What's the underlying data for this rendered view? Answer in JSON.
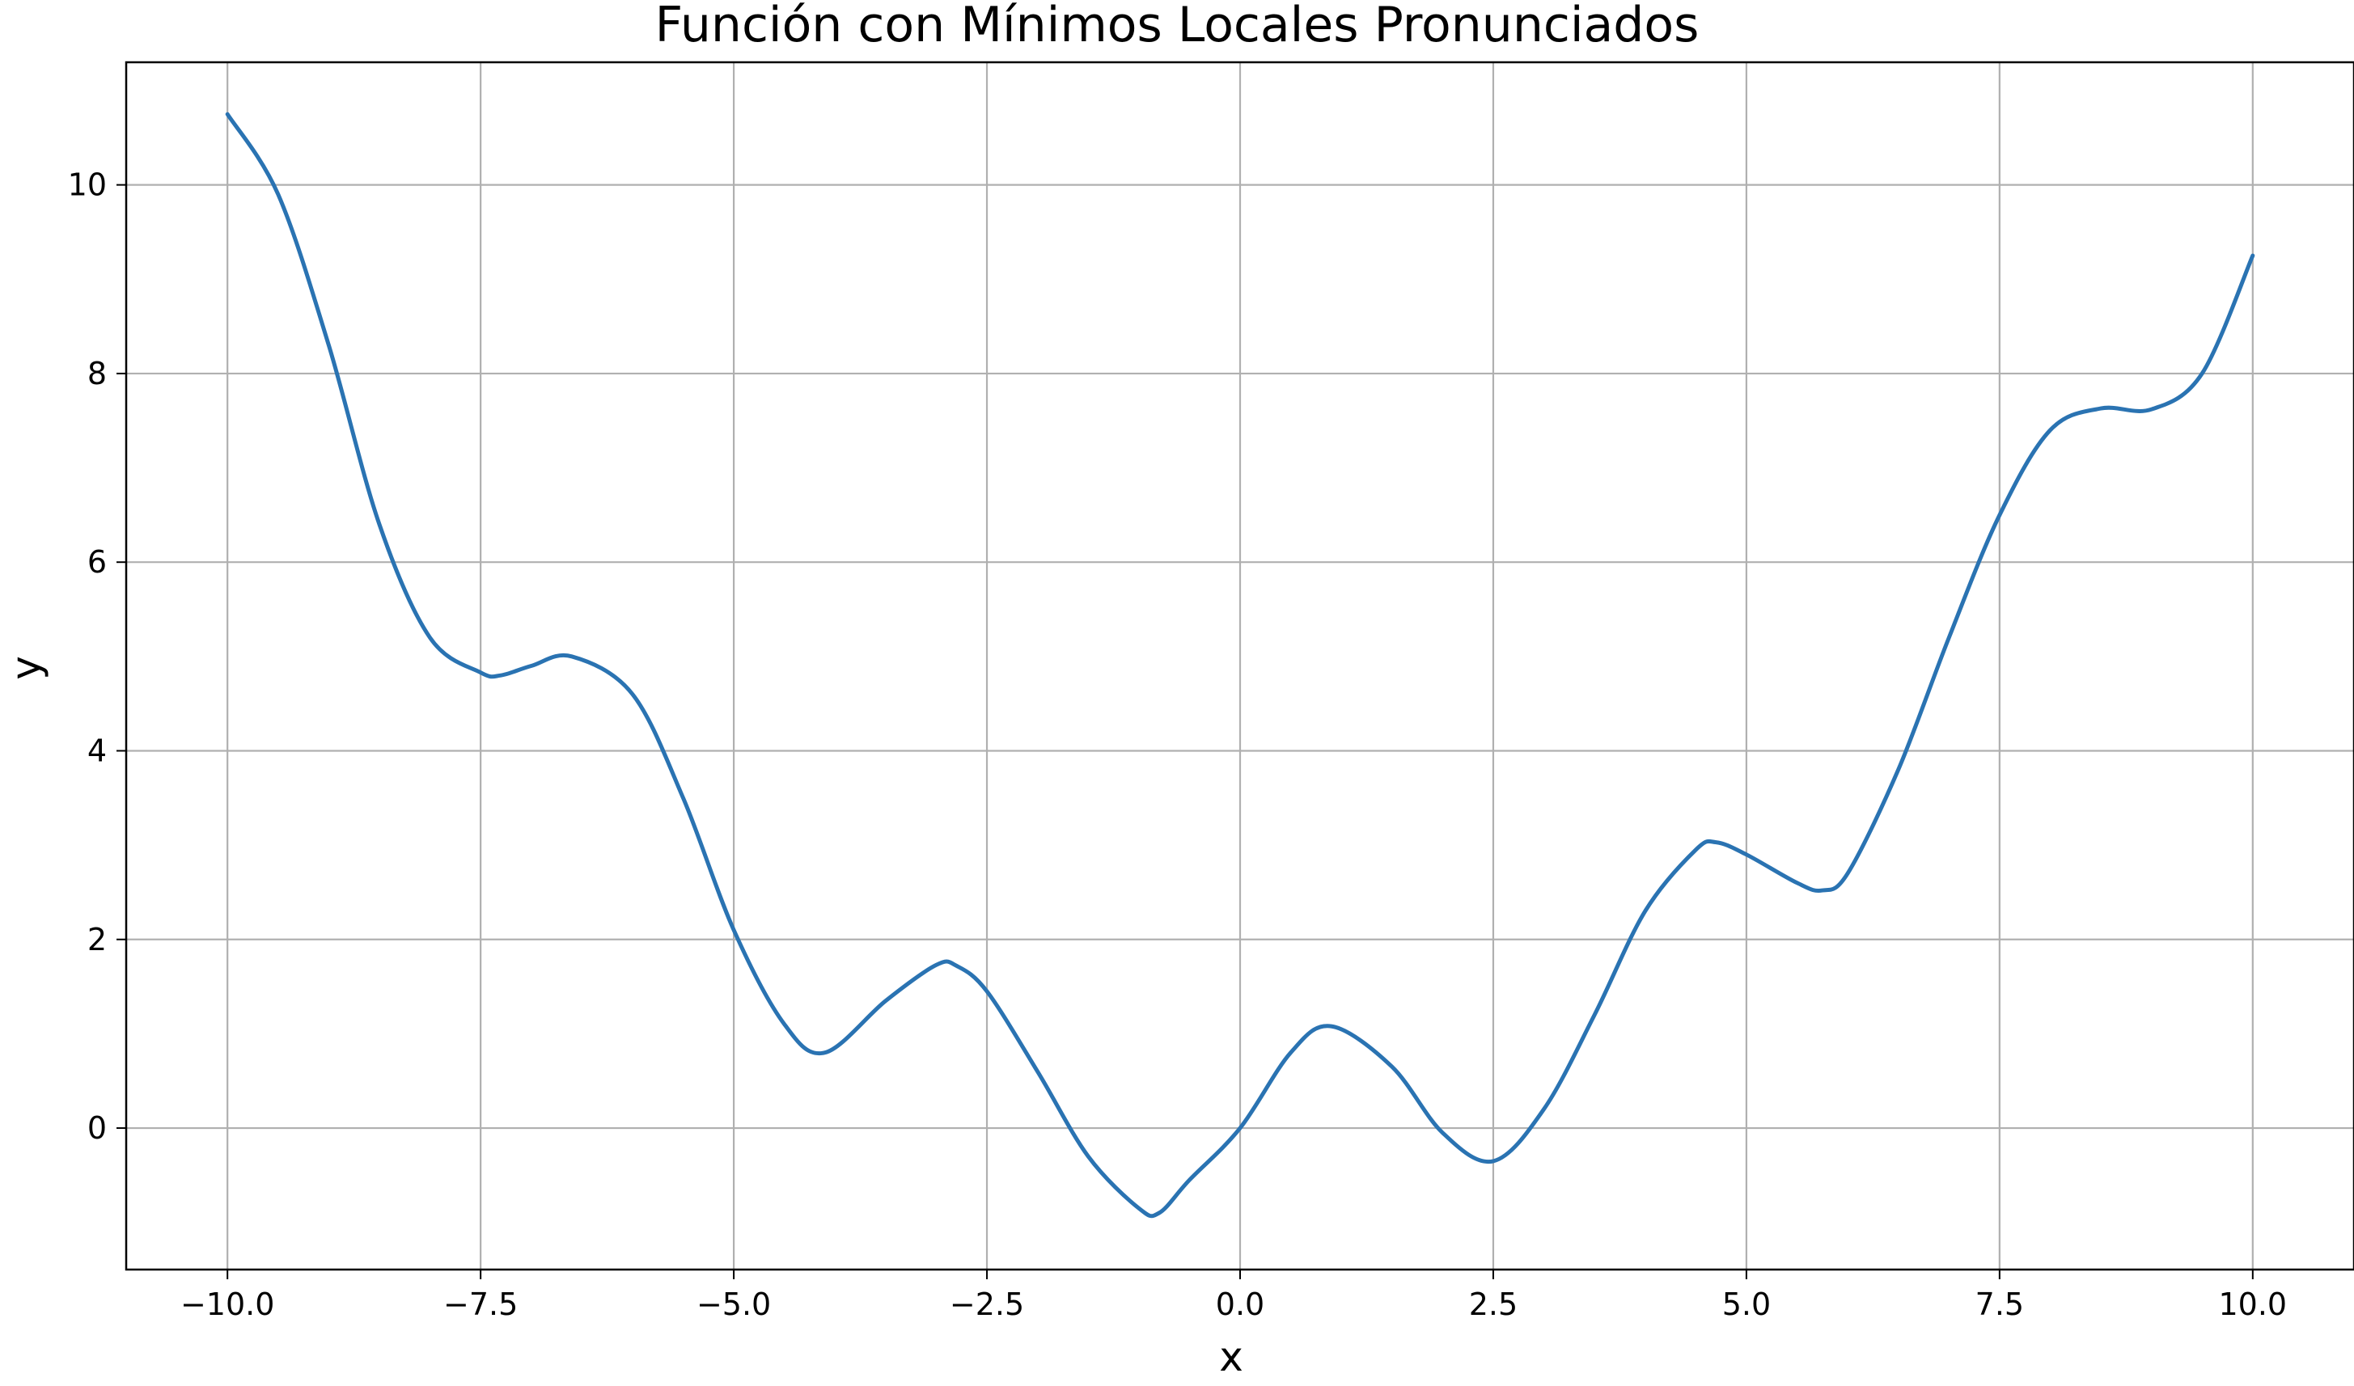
{
  "chart_data": {
    "type": "line",
    "title": "Función con Mínimos Locales Pronunciados",
    "xlabel": "x",
    "ylabel": "y",
    "xlim": [
      -11.0,
      11.0
    ],
    "ylim": [
      -1.5,
      11.3
    ],
    "grid": true,
    "color": "#2a73b2",
    "x_ticks": [
      -10.0,
      -7.5,
      -5.0,
      -2.5,
      0.0,
      2.5,
      5.0,
      7.5,
      10.0
    ],
    "x_tick_labels": [
      "−10.0",
      "−7.5",
      "−5.0",
      "−2.5",
      "0.0",
      "2.5",
      "5.0",
      "7.5",
      "10.0"
    ],
    "y_ticks": [
      0,
      2,
      4,
      6,
      8,
      10
    ],
    "y_tick_labels": [
      "0",
      "2",
      "4",
      "6",
      "8",
      "10"
    ],
    "series": [
      {
        "x": [
          -10.0,
          -9.5,
          -9.0,
          -8.5,
          -8.0,
          -7.5,
          -7.3,
          -7.0,
          -6.6,
          -6.0,
          -5.5,
          -5.0,
          -4.5,
          -4.1,
          -3.5,
          -3.0,
          -2.8,
          -2.5,
          -2.0,
          -1.5,
          -1.0,
          -0.8,
          -0.5,
          0.0,
          0.5,
          0.9,
          1.5,
          2.0,
          2.5,
          3.0,
          3.5,
          4.0,
          4.5,
          4.7,
          5.0,
          5.5,
          5.75,
          6.0,
          6.5,
          7.0,
          7.5,
          8.0,
          8.5,
          9.0,
          9.5,
          10.0
        ],
        "y": [
          10.75,
          9.9,
          8.3,
          6.4,
          5.2,
          4.83,
          4.8,
          4.9,
          5.0,
          4.6,
          3.5,
          2.1,
          1.1,
          0.8,
          1.35,
          1.73,
          1.72,
          1.45,
          0.6,
          -0.3,
          -0.85,
          -0.9,
          -0.55,
          0.0,
          0.8,
          1.08,
          0.65,
          -0.05,
          -0.35,
          0.2,
          1.2,
          2.3,
          2.95,
          3.03,
          2.9,
          2.6,
          2.52,
          2.7,
          3.8,
          5.2,
          6.5,
          7.4,
          7.63,
          7.62,
          8.0,
          9.25
        ]
      }
    ]
  }
}
